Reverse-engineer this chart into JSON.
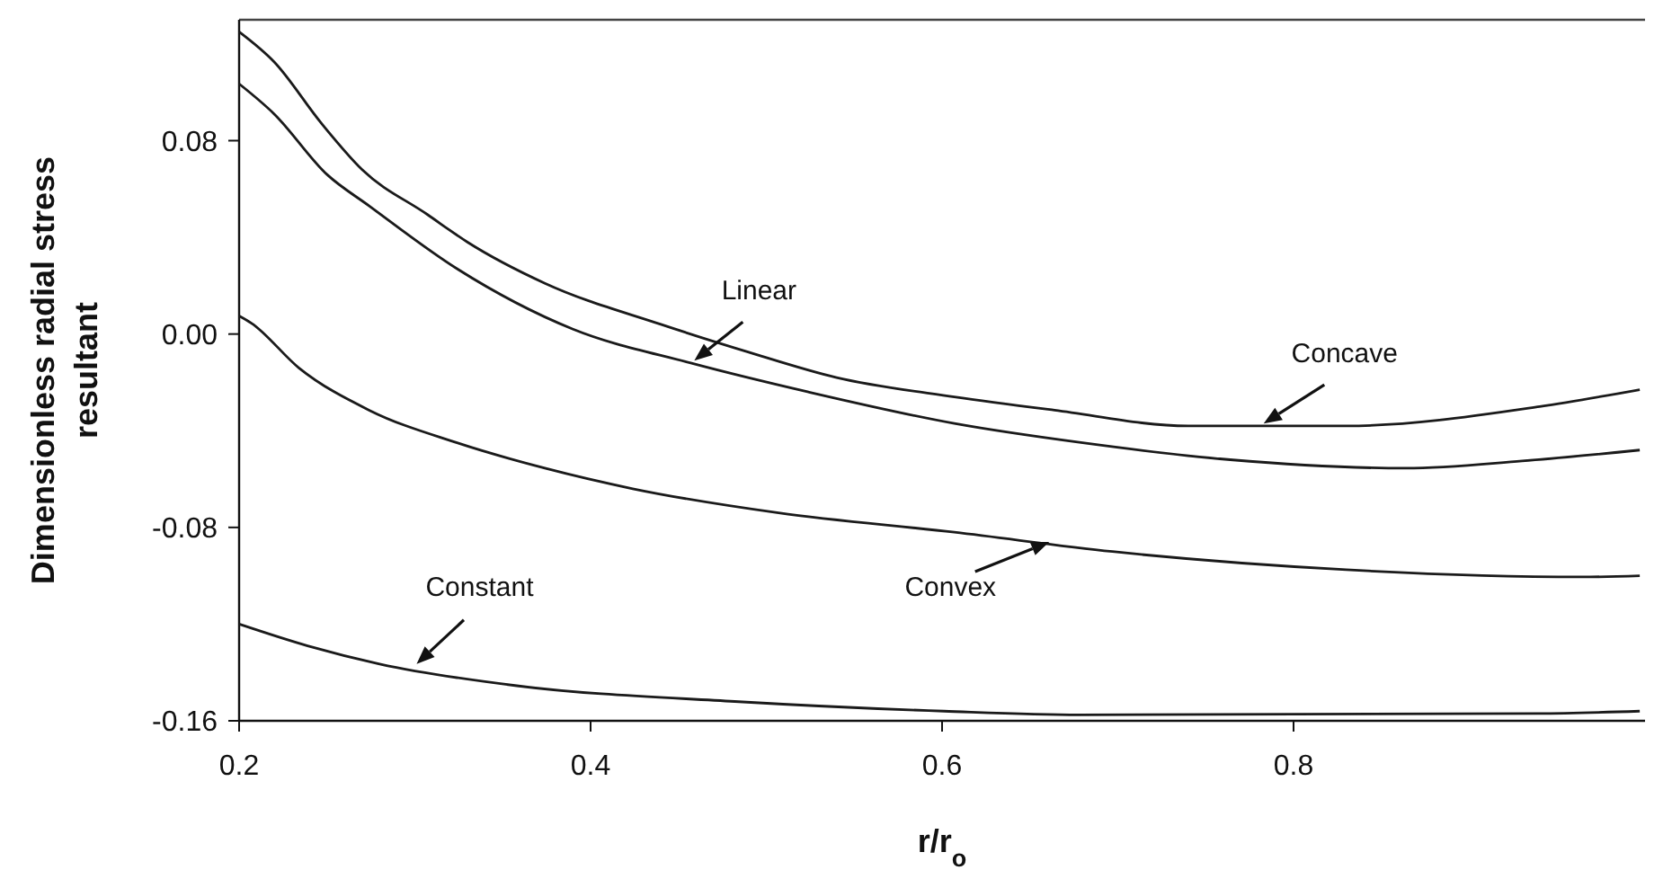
{
  "chart_data": {
    "type": "line",
    "xlabel": "r/r$_{o}$",
    "ylabel": "Dimensionless radial stress resultant",
    "xlim": [
      0.2,
      1.0
    ],
    "xticks": [
      0.2,
      0.4,
      0.6,
      0.8
    ],
    "ylim": [
      -0.16,
      0.13
    ],
    "yticks": [
      0.08,
      {
        "value": 0,
        "label": "0.00"
      },
      -0.08,
      -0.16
    ],
    "grid": false,
    "line_style": "solid",
    "series": [
      {
        "color": "#1a1a1a",
        "x": [
          0.2,
          0.22,
          0.247,
          0.27,
          0.307,
          0.33,
          0.374,
          0.44,
          0.49,
          0.54,
          0.607,
          0.664,
          0.74,
          0.83,
          0.94,
          0.997
        ],
        "values": [
          0.125,
          0.1125,
          0.087,
          0.068,
          0.0495,
          0.038,
          0.021,
          0.004,
          -0.0075,
          -0.018,
          -0.026,
          -0.0315,
          -0.038,
          -0.038,
          -0.03,
          -0.023
        ]
      },
      {
        "color": "#1a1a1a",
        "x": [
          0.2,
          0.22,
          0.25,
          0.274,
          0.324,
          0.39,
          0.457,
          0.524,
          0.607,
          0.68,
          0.764,
          0.864,
          0.93,
          0.997
        ],
        "values": [
          0.1035,
          0.091,
          0.066,
          0.053,
          0.027,
          0.002,
          -0.012,
          -0.024,
          -0.037,
          -0.045,
          -0.052,
          -0.0555,
          -0.0525,
          -0.048
        ]
      },
      {
        "color": "#1a1a1a",
        "x": [
          0.2,
          0.207,
          0.234,
          0.274,
          0.324,
          0.374,
          0.424,
          0.507,
          0.607,
          0.697,
          0.83,
          0.964,
          0.997
        ],
        "values": [
          0.0075,
          0.0045,
          -0.014,
          -0.0315,
          -0.045,
          -0.0555,
          -0.064,
          -0.074,
          -0.082,
          -0.09,
          -0.0975,
          -0.1005,
          -0.1
        ]
      },
      {
        "color": "#1a1a1a",
        "x": [
          0.2,
          0.239,
          0.28,
          0.358,
          0.482,
          0.601,
          0.678,
          0.939,
          0.997
        ],
        "values": [
          -0.12,
          -0.129,
          -0.1365,
          -0.1455,
          -0.152,
          -0.156,
          -0.1575,
          -0.157,
          -0.156
        ]
      }
    ],
    "annotations": [
      {
        "text": "Linear",
        "x": 0.459,
        "y": -0.011
      },
      {
        "text": "Concave",
        "x": 0.783,
        "y": -0.037
      },
      {
        "text": "Convex",
        "x": 0.661,
        "y": -0.086
      },
      {
        "text": "Constant",
        "x": 0.301,
        "y": -0.1365
      }
    ]
  }
}
